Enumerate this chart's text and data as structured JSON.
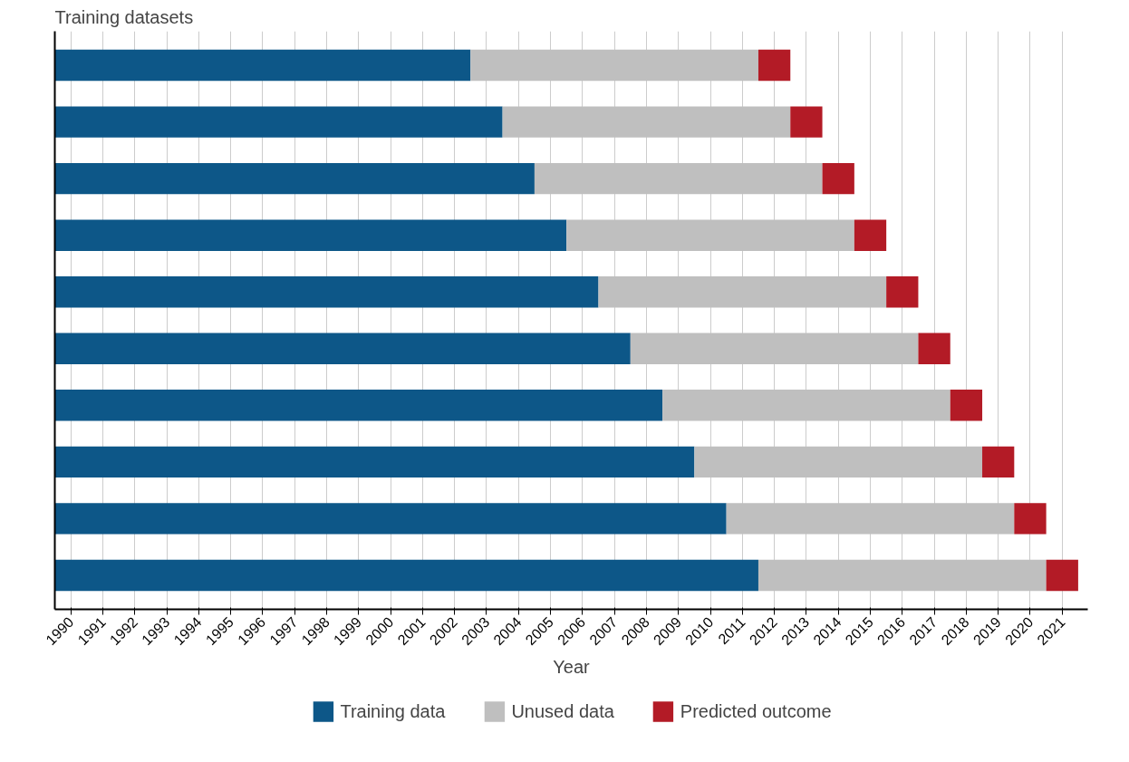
{
  "chart_data": {
    "type": "bar",
    "orientation": "horizontal",
    "title": "Training datasets",
    "xlabel": "Year",
    "categories": [
      null,
      null,
      null,
      null,
      null,
      null,
      null,
      null,
      null,
      null
    ],
    "series": [
      {
        "name": "Training data",
        "color": "#0d5788",
        "values": [
          13,
          14,
          15,
          16,
          17,
          18,
          19,
          20,
          21,
          22
        ],
        "base": [
          1989.5,
          1989.5,
          1989.5,
          1989.5,
          1989.5,
          1989.5,
          1989.5,
          1989.5,
          1989.5,
          1989.5
        ]
      },
      {
        "name": "Unused data",
        "color": "#bfbfbf",
        "values": [
          9,
          9,
          9,
          9,
          9,
          9,
          9,
          9,
          9,
          9
        ],
        "base": [
          2002.5,
          2003.5,
          2004.5,
          2005.5,
          2006.5,
          2007.5,
          2008.5,
          2009.5,
          2010.5,
          2011.5
        ]
      },
      {
        "name": "Predicted outcome",
        "color": "#b31b26",
        "values": [
          1,
          1,
          1,
          1,
          1,
          1,
          1,
          1,
          1,
          1
        ],
        "base": [
          2011.5,
          2012.5,
          2013.5,
          2014.5,
          2015.5,
          2016.5,
          2017.5,
          2018.5,
          2019.5,
          2020.5
        ]
      }
    ],
    "xlim": [
      1989.5,
      2021.8
    ],
    "xticks": [
      1990,
      1991,
      1992,
      1993,
      1994,
      1995,
      1996,
      1997,
      1998,
      1999,
      2000,
      2001,
      2002,
      2003,
      2004,
      2005,
      2006,
      2007,
      2008,
      2009,
      2010,
      2011,
      2012,
      2013,
      2014,
      2015,
      2016,
      2017,
      2018,
      2019,
      2020,
      2021
    ],
    "grid": "x",
    "legend": "bottom",
    "tick_labels": "x"
  }
}
